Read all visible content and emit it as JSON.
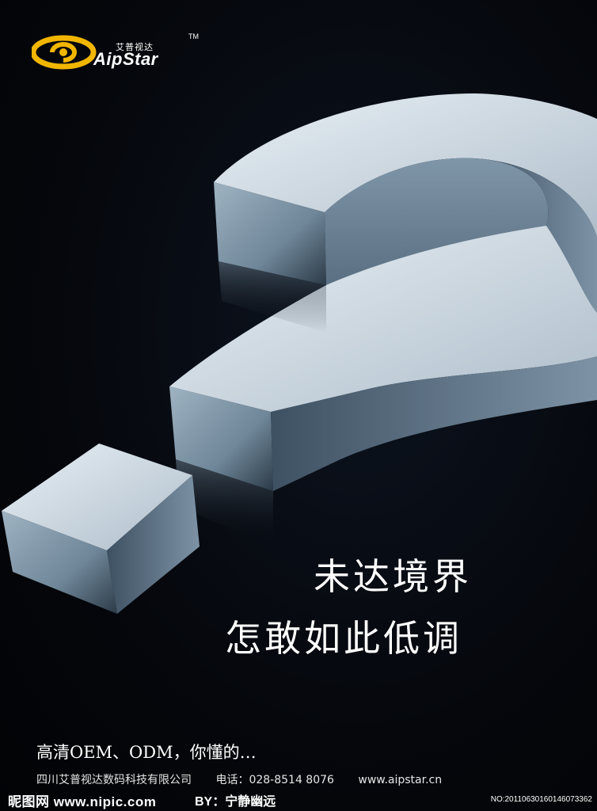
{
  "logo": {
    "chinese": "艾普视达",
    "wordmark": "AipStar",
    "tm": "TM",
    "color": "#f2b600"
  },
  "headline": {
    "line1": "未达境界",
    "line2": "怎敢如此低调"
  },
  "tagline": "高清OEM、ODM，你懂的…",
  "contact": {
    "company": "四川艾普视达数码科技有限公司",
    "phone": "电话：028-8514 8076",
    "website": "www.aipstar.cn"
  },
  "watermark": {
    "site": "昵图网 www.nipic.com",
    "author": "BY：宁静幽远",
    "number": "NO:20110630160146073362"
  },
  "icons": [
    "question-mark-3d-icon",
    "aipstar-swirl-logo-icon"
  ]
}
